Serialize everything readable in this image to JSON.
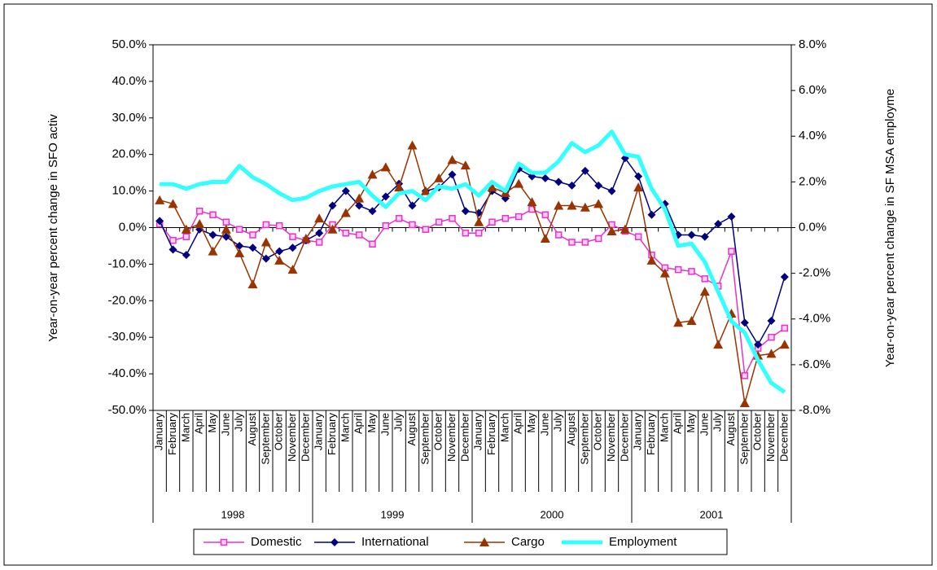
{
  "chart_data": {
    "type": "line",
    "categories": [
      "January",
      "February",
      "March",
      "April",
      "May",
      "June",
      "July",
      "August",
      "September",
      "October",
      "November",
      "December",
      "January",
      "February",
      "March",
      "April",
      "May",
      "June",
      "July",
      "August",
      "September",
      "October",
      "November",
      "December",
      "January",
      "February",
      "March",
      "April",
      "May",
      "June",
      "July",
      "August",
      "September",
      "October",
      "November",
      "December",
      "January",
      "February",
      "March",
      "April",
      "May",
      "June",
      "July",
      "August",
      "September",
      "October",
      "November",
      "December"
    ],
    "year_groups": [
      "1998",
      "1999",
      "2000",
      "2001"
    ],
    "y_label": "Year-on-year percent change in SFO activ",
    "y2_label": "Year-on-year percent change in SF MSA employme",
    "ylim": [
      -50,
      50
    ],
    "yticks": [
      {
        "value": -50,
        "label": "-50.0%"
      },
      {
        "value": -40,
        "label": "-40.0%"
      },
      {
        "value": -30,
        "label": "-30.0%"
      },
      {
        "value": -20,
        "label": "-20.0%"
      },
      {
        "value": -10,
        "label": "-10.0%"
      },
      {
        "value": 0,
        "label": "0.0%"
      },
      {
        "value": 10,
        "label": "10.0%"
      },
      {
        "value": 20,
        "label": "20.0%"
      },
      {
        "value": 30,
        "label": "30.0%"
      },
      {
        "value": 40,
        "label": "40.0%"
      },
      {
        "value": 50,
        "label": "50.0%"
      }
    ],
    "y2lim": [
      -8,
      8
    ],
    "y2ticks": [
      {
        "value": -8,
        "label": "-8.0%"
      },
      {
        "value": -6,
        "label": "-6.0%"
      },
      {
        "value": -4,
        "label": "-4.0%"
      },
      {
        "value": -2,
        "label": "-2.0%"
      },
      {
        "value": 0,
        "label": "0.0%"
      },
      {
        "value": 2,
        "label": "2.0%"
      },
      {
        "value": 4,
        "label": "4.0%"
      },
      {
        "value": 6,
        "label": "6.0%"
      },
      {
        "value": 8,
        "label": "8.0%"
      }
    ],
    "legend": "bottom",
    "series": [
      {
        "name": "Domestic",
        "color": "#e633cc",
        "marker": "square",
        "values": [
          1.0,
          -3.5,
          -2.5,
          4.5,
          3.5,
          1.5,
          -0.5,
          -2.0,
          0.8,
          0.5,
          -2.5,
          -3.5,
          -4.0,
          0.8,
          -1.5,
          -2.0,
          -4.5,
          0.5,
          2.5,
          0.8,
          -0.5,
          1.5,
          2.5,
          -1.5,
          -1.5,
          1.5,
          2.5,
          3.0,
          5.0,
          3.5,
          -2.0,
          -4.0,
          -4.0,
          -3.0,
          0.8,
          -1.0,
          -2.5,
          -7.5,
          -11.0,
          -11.5,
          -12.0,
          -14.0,
          -16.0,
          -6.5,
          -40.5,
          -33.0,
          -30.0,
          -27.5
        ]
      },
      {
        "name": "International",
        "color": "#000080",
        "marker": "diamond",
        "values": [
          1.8,
          -6.0,
          -7.5,
          -0.5,
          -2.0,
          -2.5,
          -5.0,
          -5.5,
          -8.5,
          -6.5,
          -5.5,
          -3.5,
          -1.5,
          6.0,
          10.0,
          6.0,
          4.5,
          8.5,
          12.0,
          6.0,
          10.0,
          11.0,
          14.5,
          4.5,
          4.0,
          10.0,
          8.0,
          16.0,
          14.0,
          13.5,
          12.5,
          11.5,
          15.5,
          11.5,
          10.0,
          19.0,
          14.0,
          3.5,
          6.5,
          -2.0,
          -2.0,
          -2.5,
          1.0,
          3.0,
          -26.0,
          -32.0,
          -25.5,
          -13.5
        ]
      },
      {
        "name": "Cargo",
        "color": "#993300",
        "marker": "triangle",
        "values": [
          7.5,
          6.5,
          -0.5,
          1.0,
          -6.5,
          -0.5,
          -7.0,
          -15.5,
          -4.0,
          -9.0,
          -11.5,
          -3.0,
          2.5,
          -0.5,
          4.0,
          8.0,
          14.5,
          16.5,
          11.0,
          22.5,
          10.0,
          13.5,
          18.5,
          17.0,
          1.5,
          11.0,
          9.5,
          12.0,
          7.0,
          -3.0,
          6.0,
          6.0,
          5.5,
          6.5,
          -1.0,
          -0.5,
          11.0,
          -9.0,
          -12.5,
          -26.0,
          -25.5,
          -17.5,
          -32.0,
          -23.5,
          -48.0,
          -35.0,
          -34.5,
          -32.0
        ]
      },
      {
        "name": "Employment",
        "color": "#33ffff",
        "marker": "none",
        "axis": "y2",
        "values": [
          1.9,
          1.9,
          1.7,
          1.9,
          2.0,
          2.0,
          2.7,
          2.2,
          1.9,
          1.5,
          1.2,
          1.3,
          1.6,
          1.8,
          1.9,
          2.0,
          1.4,
          0.9,
          1.5,
          1.6,
          1.2,
          1.8,
          1.7,
          1.9,
          1.4,
          2.0,
          1.6,
          2.8,
          2.4,
          2.4,
          2.9,
          3.7,
          3.3,
          3.6,
          4.2,
          3.2,
          3.1,
          1.7,
          0.8,
          -0.8,
          -0.7,
          -1.5,
          -2.8,
          -4.1,
          -4.6,
          -5.8,
          -6.8,
          -7.2
        ]
      }
    ]
  }
}
